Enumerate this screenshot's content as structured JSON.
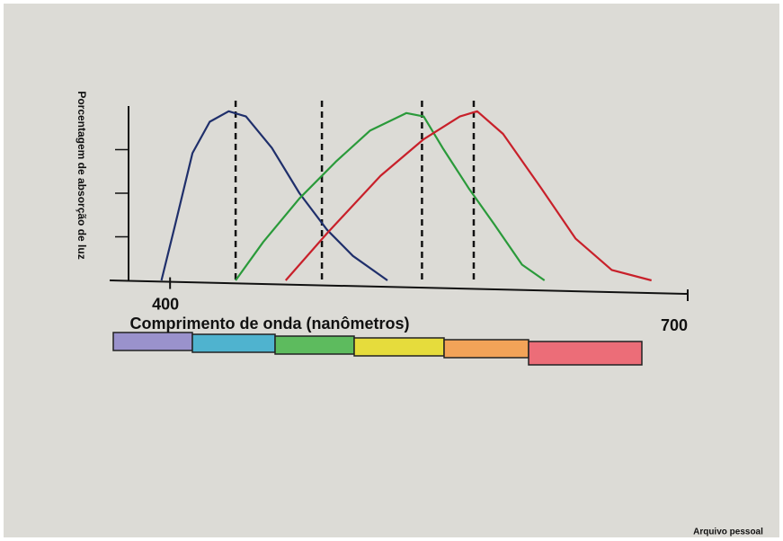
{
  "chart_data": {
    "type": "line",
    "y_label": "Porcentagem de absorção de luz",
    "x_label": "Comprimento de onda (nanômetros)",
    "source": "Arquivo pessoal",
    "xlim": [
      365,
      700
    ],
    "ylim": [
      0,
      100
    ],
    "xticks": [
      400,
      700
    ],
    "yticks": [
      25,
      50,
      75
    ],
    "reference_lines": [
      438,
      488,
      546,
      576
    ],
    "series": [
      {
        "color": "#1f2f6b",
        "x": [
          395,
          403,
          413,
          423,
          434,
          444,
          459,
          475,
          491,
          506,
          526
        ],
        "values": [
          0,
          32,
          73,
          91,
          97,
          94,
          76,
          50,
          29,
          14,
          0
        ]
      },
      {
        "color": "#2a9a3a",
        "x": [
          438,
          454,
          475,
          496,
          516,
          537,
          547,
          558,
          573,
          588,
          604,
          617
        ],
        "values": [
          0,
          22,
          47,
          68,
          86,
          96,
          94,
          76,
          53,
          32,
          9,
          0
        ]
      },
      {
        "color": "#c8202a",
        "x": [
          467,
          491,
          522,
          547,
          568,
          578,
          593,
          615,
          635,
          656,
          679
        ],
        "values": [
          0,
          27,
          60,
          81,
          94,
          97,
          84,
          53,
          24,
          6,
          0
        ]
      }
    ]
  }
}
